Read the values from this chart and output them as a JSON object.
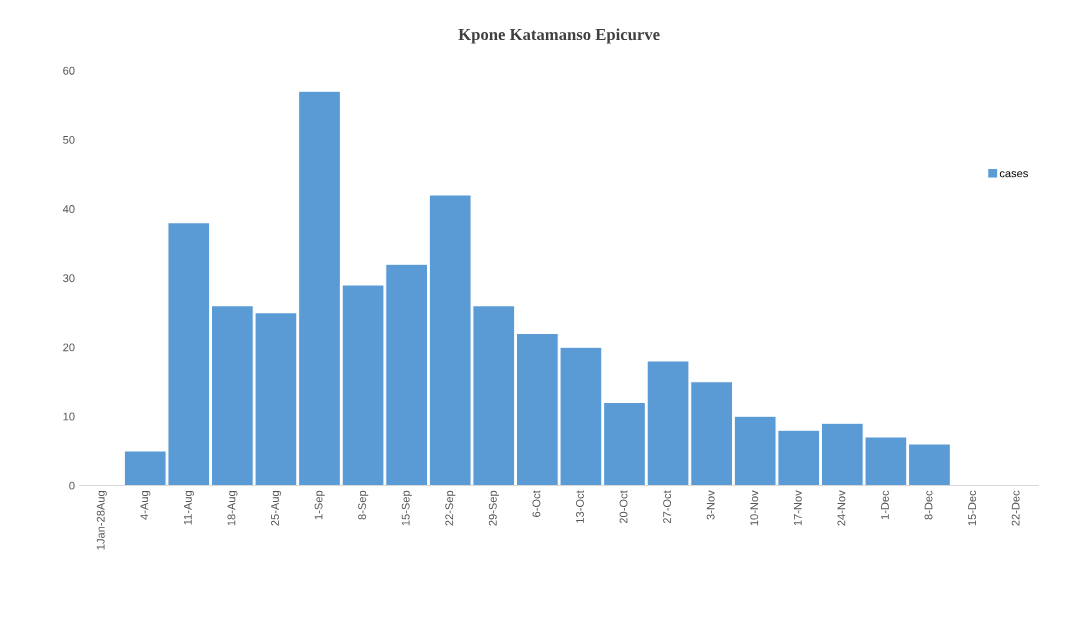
{
  "chart_data": {
    "type": "bar",
    "title": "Kpone Katamanso Epicurve",
    "categories": [
      "1Jan-28Aug",
      "4-Aug",
      "11-Aug",
      "18-Aug",
      "25-Aug",
      "1-Sep",
      "8-Sep",
      "15-Sep",
      "22-Sep",
      "29-Sep",
      "6-Oct",
      "13-Oct",
      "20-Oct",
      "27-Oct",
      "3-Nov",
      "10-Nov",
      "17-Nov",
      "24-Nov",
      "1-Dec",
      "8-Dec",
      "15-Dec",
      "22-Dec"
    ],
    "series": [
      {
        "name": "cases",
        "color": "#5b9bd5",
        "values": [
          0,
          5,
          38,
          26,
          25,
          57,
          29,
          32,
          42,
          26,
          22,
          20,
          12,
          18,
          15,
          10,
          8,
          9,
          7,
          6,
          0,
          0
        ]
      }
    ],
    "ylim": [
      0,
      60
    ],
    "yticks": [
      0,
      10,
      20,
      30,
      40,
      50,
      60
    ],
    "grid": false,
    "legend": "right"
  }
}
